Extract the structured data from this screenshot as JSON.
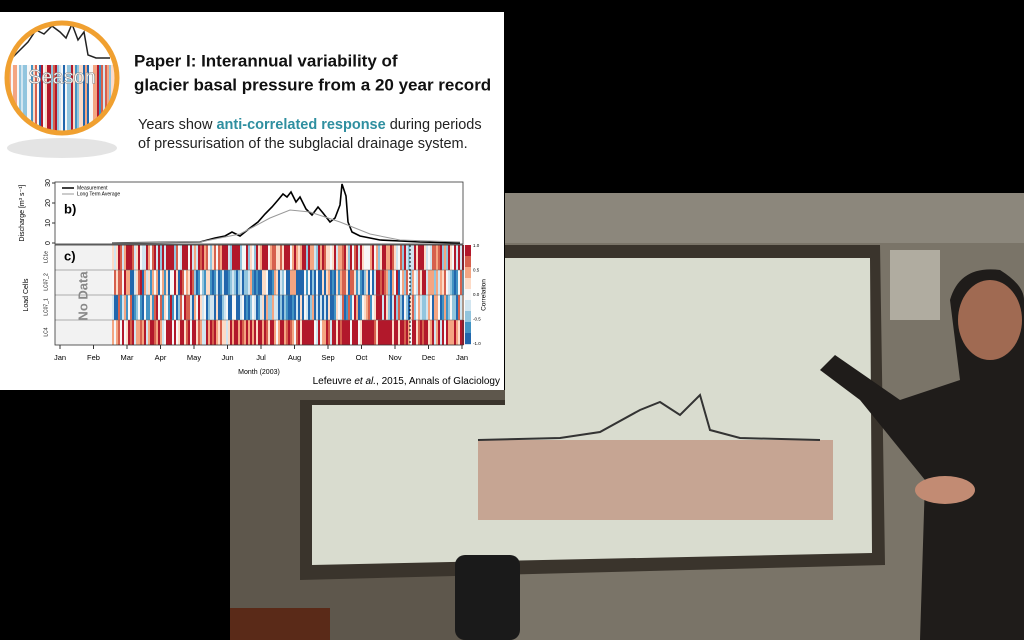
{
  "slide": {
    "badge": "Season",
    "title_lines": [
      "Paper I: Interannual variability of",
      "glacier basal pressure from a 20 year record"
    ],
    "subtitle": {
      "before": "Years show ",
      "highlight": "anti-correlated response",
      "after": " during periods",
      "line2": "of pressurisation of the subglacial drainage system."
    },
    "figure": {
      "panel_b": "b)",
      "panel_c": "c)",
      "y_axis_label": "Discharge [m³ s⁻¹]",
      "y_ticks": [
        "0",
        "10",
        "20",
        "30"
      ],
      "legend": [
        "Measurement",
        "Long Term Average"
      ],
      "load_cells_label": "Load Cells",
      "row_labels": [
        "LC1e",
        "LC07_2",
        "LC07_1",
        "LC4"
      ],
      "no_data": "No Data",
      "colorbar_label": "Correlation",
      "colorbar_ticks": [
        "1.0",
        "0.5",
        "0.0",
        "-0.5",
        "-1.0"
      ],
      "months": [
        "Jan",
        "Feb",
        "Mar",
        "Apr",
        "May",
        "Jun",
        "Jul",
        "Aug",
        "Sep",
        "Oct",
        "Nov",
        "Dec",
        "Jan"
      ],
      "x_axis_label": "Month (2003)"
    },
    "citation": {
      "author": "Lefeuvre ",
      "etal": "et al.",
      "rest": ", 2015, Annals of Glaciology"
    }
  }
}
